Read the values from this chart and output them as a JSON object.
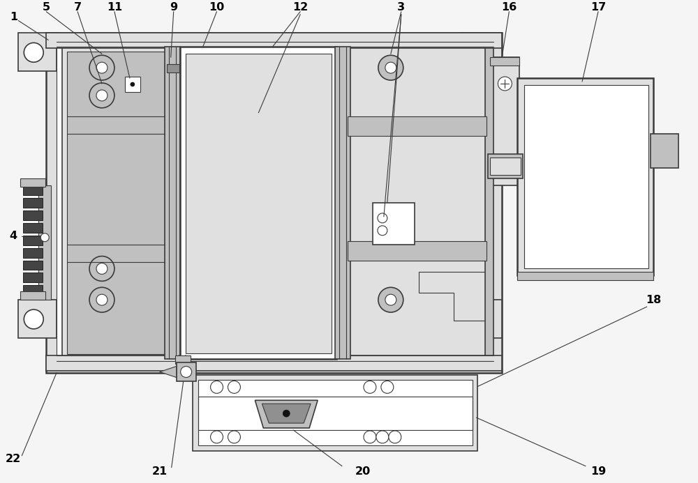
{
  "background_color": "#f5f5f5",
  "line_color": "#3a3a3a",
  "fig_width": 10.0,
  "fig_height": 6.93,
  "dpi": 100,
  "gray_light": "#e0e0e0",
  "gray_med": "#c0c0c0",
  "gray_dark": "#909090",
  "gray_fill": "#d8d8d8",
  "white": "#ffffff",
  "black": "#111111"
}
